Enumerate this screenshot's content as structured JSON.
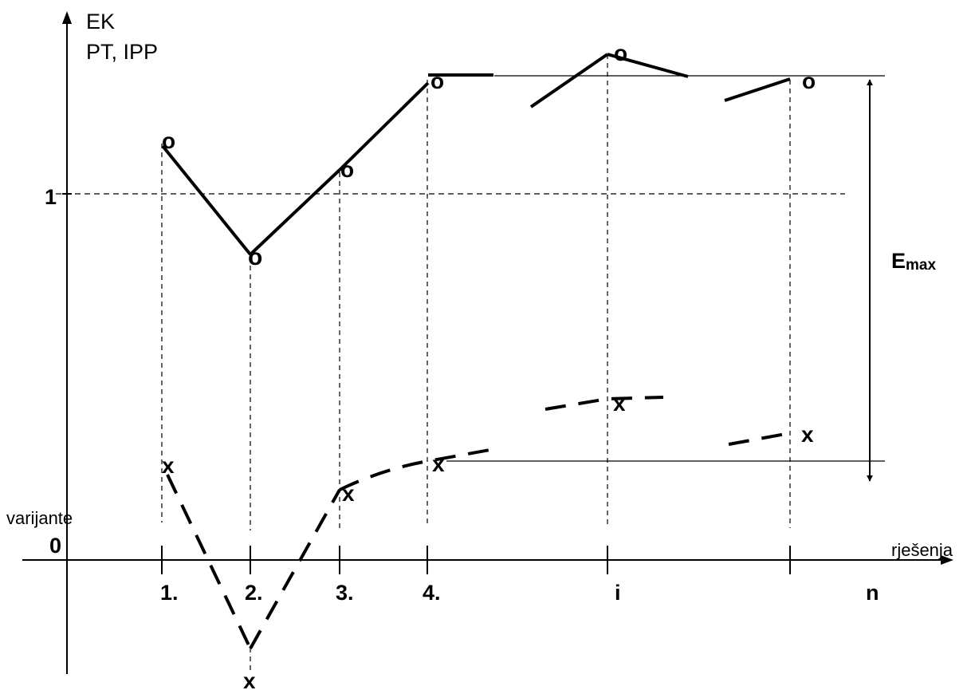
{
  "chart_data": {
    "type": "line",
    "y_axis_labels": [
      "EK",
      "PT, IPP"
    ],
    "x_axis_label": "rješenja",
    "left_axis_caption": "varijante",
    "origin_label": "0",
    "reference_label": "1",
    "emax_label": {
      "main": "E",
      "sub": "max"
    },
    "categories": [
      "1.",
      "2.",
      "3.",
      "4.",
      "i",
      "n"
    ],
    "marker_symbols": {
      "upper": "o",
      "lower": "x"
    },
    "colors": {
      "ink": "#000000",
      "background": "#ffffff"
    }
  }
}
